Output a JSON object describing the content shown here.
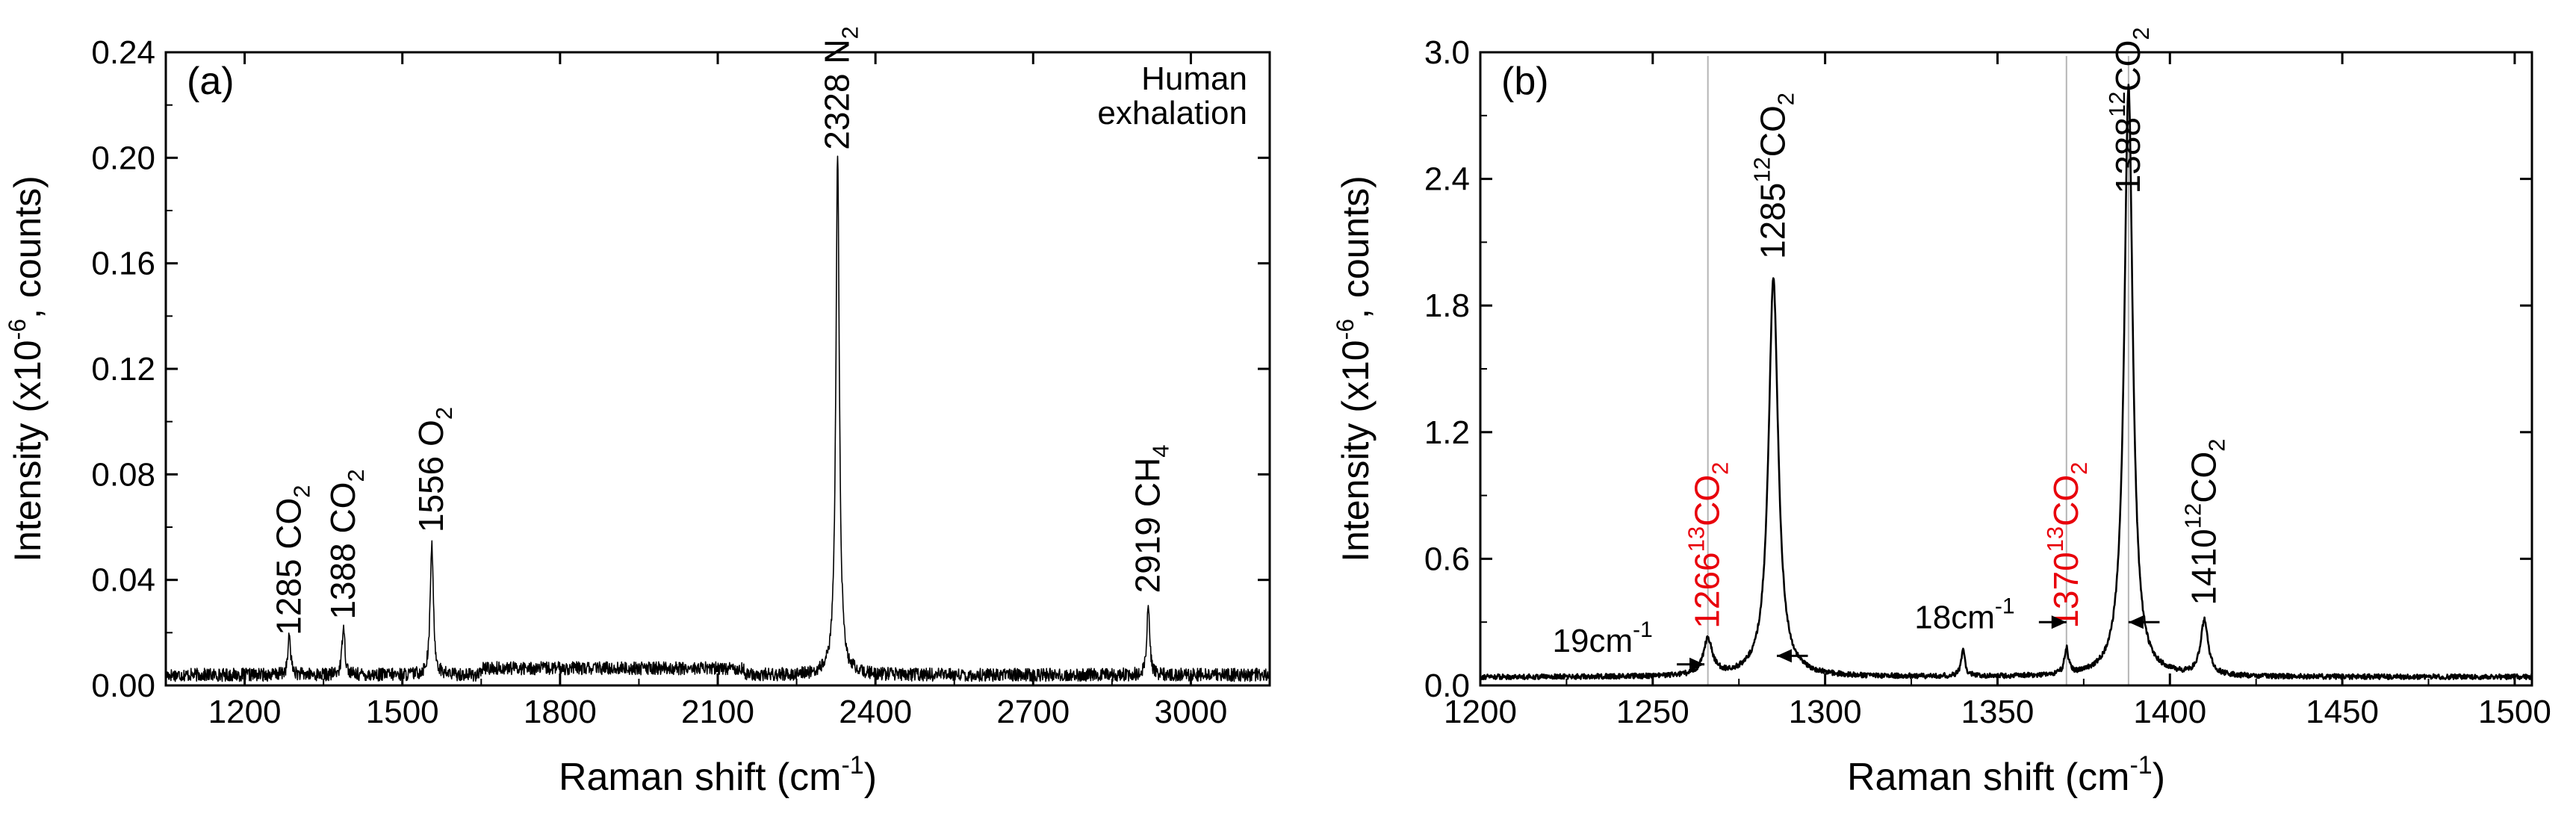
{
  "chart_data": [
    {
      "type": "line",
      "panel_label": "(a)",
      "title": "",
      "xlabel": "Raman shift (cm",
      "xlabel_sup": "-1",
      "xlabel_close": ")",
      "ylabel": "Intensity (x10",
      "ylabel_sup": "-6",
      "ylabel_close": ", counts)",
      "xlim": [
        1050,
        3150
      ],
      "ylim": [
        0,
        0.24
      ],
      "xticks": [
        1200,
        1500,
        1800,
        2100,
        2400,
        2700,
        3000
      ],
      "xtick_labels": [
        "1200",
        "1500",
        "1800",
        "2100",
        "2400",
        "2700",
        "3000"
      ],
      "yticks": [
        0,
        0.04,
        0.08,
        0.12,
        0.16,
        0.2,
        0.24
      ],
      "ytick_labels": [
        "0.00",
        "0.04",
        "0.08",
        "0.12",
        "0.16",
        "0.20",
        "0.24"
      ],
      "legend_text": [
        "Human",
        "exhalation"
      ],
      "baseline": 0.004,
      "noise": 0.0025,
      "peaks": [
        {
          "x": 1285,
          "height": 0.015,
          "width": 3
        },
        {
          "x": 1388,
          "height": 0.02,
          "width": 3
        },
        {
          "x": 1556,
          "height": 0.05,
          "width": 3.5
        },
        {
          "x": 2328,
          "height": 0.196,
          "width": 4
        },
        {
          "x": 2919,
          "height": 0.028,
          "width": 3
        }
      ],
      "annotations": [
        {
          "x": 1285,
          "y": 0.019,
          "num": "1285",
          "mol": "CO",
          "sub": "2"
        },
        {
          "x": 1388,
          "y": 0.025,
          "num": "1388",
          "mol": "CO",
          "sub": "2"
        },
        {
          "x": 1556,
          "y": 0.058,
          "num": "1556",
          "mol": "O",
          "sub": "2"
        },
        {
          "x": 2328,
          "y": 0.203,
          "num": "2328",
          "mol": "N",
          "sub": "2"
        },
        {
          "x": 2919,
          "y": 0.035,
          "num": "2919",
          "mol": "CH",
          "sub": "4"
        }
      ]
    },
    {
      "type": "line",
      "panel_label": "(b)",
      "title": "",
      "xlabel": "Raman shift (cm",
      "xlabel_sup": "-1",
      "xlabel_close": ")",
      "ylabel": "Intensity (x10",
      "ylabel_sup": "-6",
      "ylabel_close": ", counts)",
      "xlim": [
        1200,
        1505
      ],
      "ylim": [
        0,
        3.0
      ],
      "xticks": [
        1200,
        1250,
        1300,
        1350,
        1400,
        1450,
        1500
      ],
      "xtick_labels": [
        "1200",
        "1250",
        "1300",
        "1350",
        "1400",
        "1450",
        "1500"
      ],
      "yticks": [
        0,
        0.6,
        1.2,
        1.8,
        2.4,
        3.0
      ],
      "ytick_labels": [
        "0.0",
        "0.6",
        "1.2",
        "1.8",
        "2.4",
        "3.0"
      ],
      "baseline": 0.04,
      "noise": 0.012,
      "peaks": [
        {
          "x": 1266,
          "height": 0.17,
          "width": 1.6
        },
        {
          "x": 1285,
          "height": 1.88,
          "width": 1.7
        },
        {
          "x": 1340,
          "height": 0.12,
          "width": 0.7
        },
        {
          "x": 1370,
          "height": 0.12,
          "width": 0.7
        },
        {
          "x": 1388,
          "height": 2.8,
          "width": 1.5
        },
        {
          "x": 1410,
          "height": 0.26,
          "width": 1.3
        }
      ],
      "gray_lines": [
        1266,
        1370,
        1388
      ],
      "annotations": [
        {
          "x": 1266,
          "y": 0.27,
          "num": "1266",
          "iso": "13",
          "mol": "CO",
          "sub": "2",
          "color": "#e8000b"
        },
        {
          "x": 1285,
          "y": 2.02,
          "num": "1285",
          "iso": "12",
          "mol": "CO",
          "sub": "2",
          "color": "#000000"
        },
        {
          "x": 1370,
          "y": 0.27,
          "num": "1370",
          "iso": "13",
          "mol": "CO",
          "sub": "2",
          "color": "#e8000b"
        },
        {
          "x": 1388,
          "y": 2.33,
          "num": "1388",
          "iso": "12",
          "mol": "CO",
          "sub": "2",
          "color": "#000000"
        },
        {
          "x": 1410,
          "y": 0.38,
          "num": "1410",
          "iso": "12",
          "mol": "CO",
          "sub": "2",
          "color": "#000000"
        }
      ],
      "shift_labels": [
        {
          "text": "19cm",
          "sup": "-1",
          "x": 1250,
          "y": 0.16
        },
        {
          "text": "18cm",
          "sup": "-1",
          "x": 1355,
          "y": 0.27
        }
      ],
      "arrows": [
        {
          "x_from": 1257,
          "x_to": 1265,
          "y": 0.1,
          "head": "right"
        },
        {
          "x_from": 1295,
          "x_to": 1286,
          "y": 0.14,
          "head": "left"
        },
        {
          "x_from": 1362,
          "x_to": 1370,
          "y": 0.3,
          "head": "right"
        },
        {
          "x_from": 1397,
          "x_to": 1388,
          "y": 0.3,
          "head": "left"
        }
      ]
    }
  ]
}
